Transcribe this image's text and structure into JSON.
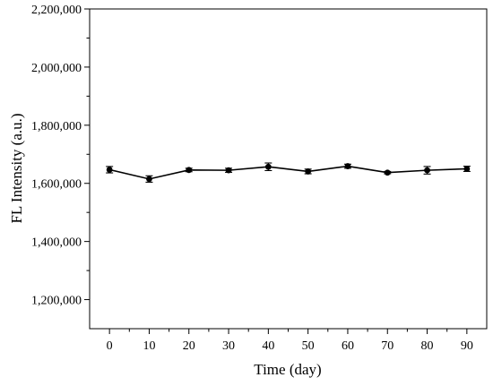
{
  "chart_data": {
    "type": "line",
    "title": "",
    "xlabel": "Time (day)",
    "ylabel": "FL Intensity (a.u.)",
    "xlim": [
      -5,
      95
    ],
    "ylim": [
      1100000,
      2200000
    ],
    "x_ticks": [
      0,
      10,
      20,
      30,
      40,
      50,
      60,
      70,
      80,
      90
    ],
    "x_tick_labels": [
      "0",
      "10",
      "20",
      "30",
      "40",
      "50",
      "60",
      "70",
      "80",
      "90"
    ],
    "y_ticks": [
      1200000,
      1400000,
      1600000,
      1800000,
      2000000,
      2200000
    ],
    "y_tick_labels": [
      "1,200,000",
      "1,400,000",
      "1,600,000",
      "1,800,000",
      "2,000,000",
      "2,200,000"
    ],
    "grid": false,
    "legend": "none",
    "series": [
      {
        "x": [
          0,
          10,
          20,
          30,
          40,
          50,
          60,
          70,
          80,
          90
        ],
        "values": [
          1647000,
          1615000,
          1646000,
          1645000,
          1657000,
          1641000,
          1659000,
          1637000,
          1645000,
          1650000
        ],
        "error": [
          11000,
          11000,
          6000,
          7000,
          13000,
          8000,
          7000,
          4000,
          13000,
          9000
        ],
        "color": "#000000",
        "marker": "circle"
      }
    ]
  }
}
